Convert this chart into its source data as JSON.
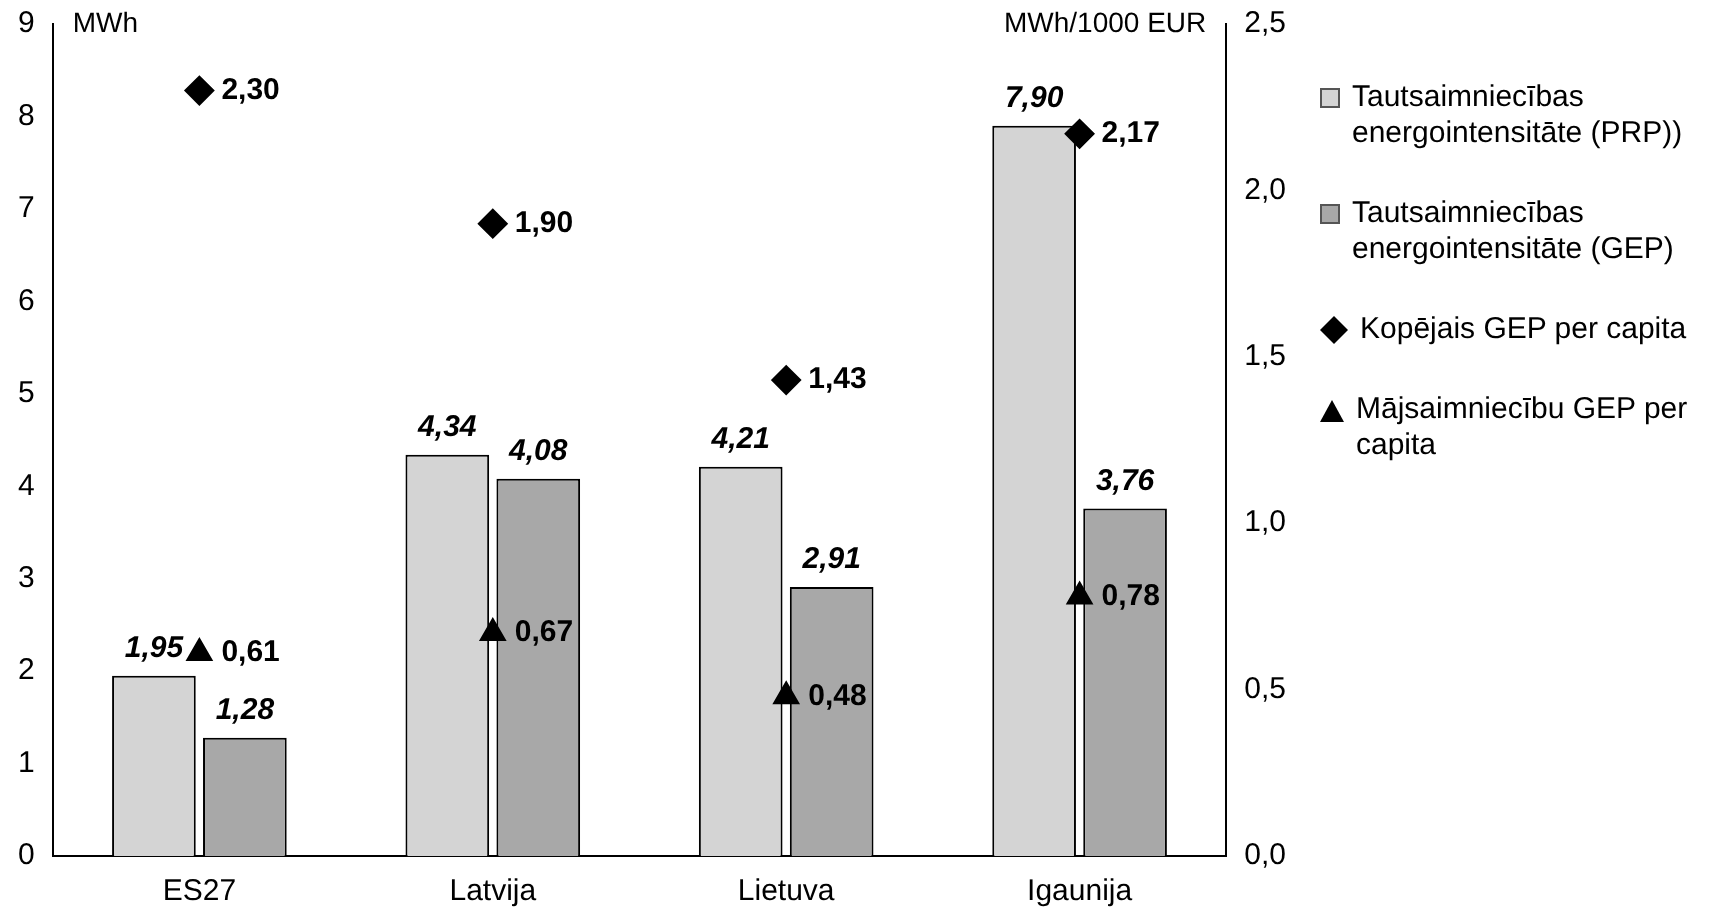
{
  "chart_data": {
    "type": "bar",
    "ylabel": "MWh",
    "y2label": "MWh/1000 EUR",
    "categories": [
      "ES27",
      "Latvija",
      "Lietuva",
      "Igaunija"
    ],
    "series": [
      {
        "name": "Tautsaimniecības energointensitāte (PRP))",
        "color": "#d4d4d4",
        "values": [
          1.95,
          4.34,
          4.21,
          7.9
        ],
        "value_labels": [
          "1,95",
          "4,34",
          "4,21",
          "7,90"
        ]
      },
      {
        "name": "Tautsaimniecības energointensitāte (GEP)",
        "color": "#a8a8a8",
        "values": [
          1.28,
          4.08,
          2.91,
          3.76
        ],
        "value_labels": [
          "1,28",
          "4,08",
          "2,91",
          "3,76"
        ]
      },
      {
        "name": "Kopējais GEP per capita",
        "type": "scatter",
        "axis": "y2",
        "marker": "diamond",
        "color": "#000000",
        "values": [
          2.3,
          1.9,
          1.43,
          2.17
        ],
        "value_labels": [
          "2,30",
          "1,90",
          "1,43",
          "2,17"
        ]
      },
      {
        "name": "Mājsaimniecību GEP per capita",
        "type": "scatter",
        "axis": "y2",
        "marker": "triangle",
        "color": "#000000",
        "values": [
          0.61,
          0.67,
          0.48,
          0.78
        ],
        "value_labels": [
          "0,61",
          "0,67",
          "0,48",
          "0,78"
        ]
      }
    ],
    "ylim": [
      0,
      9
    ],
    "yticks": [
      0,
      1,
      2,
      3,
      4,
      5,
      6,
      7,
      8,
      9
    ],
    "y2lim": [
      0,
      2.5
    ],
    "y2ticks": [
      {
        "value": 0,
        "label": "0,0"
      },
      {
        "value": 0.5,
        "label": "0,5"
      },
      {
        "value": 1,
        "label": "1,0"
      },
      {
        "value": 1.5,
        "label": "1,5"
      },
      {
        "value": 2,
        "label": "2,0"
      },
      {
        "value": 2.5,
        "label": "2,5"
      }
    ],
    "grid": false,
    "legend": "right"
  }
}
